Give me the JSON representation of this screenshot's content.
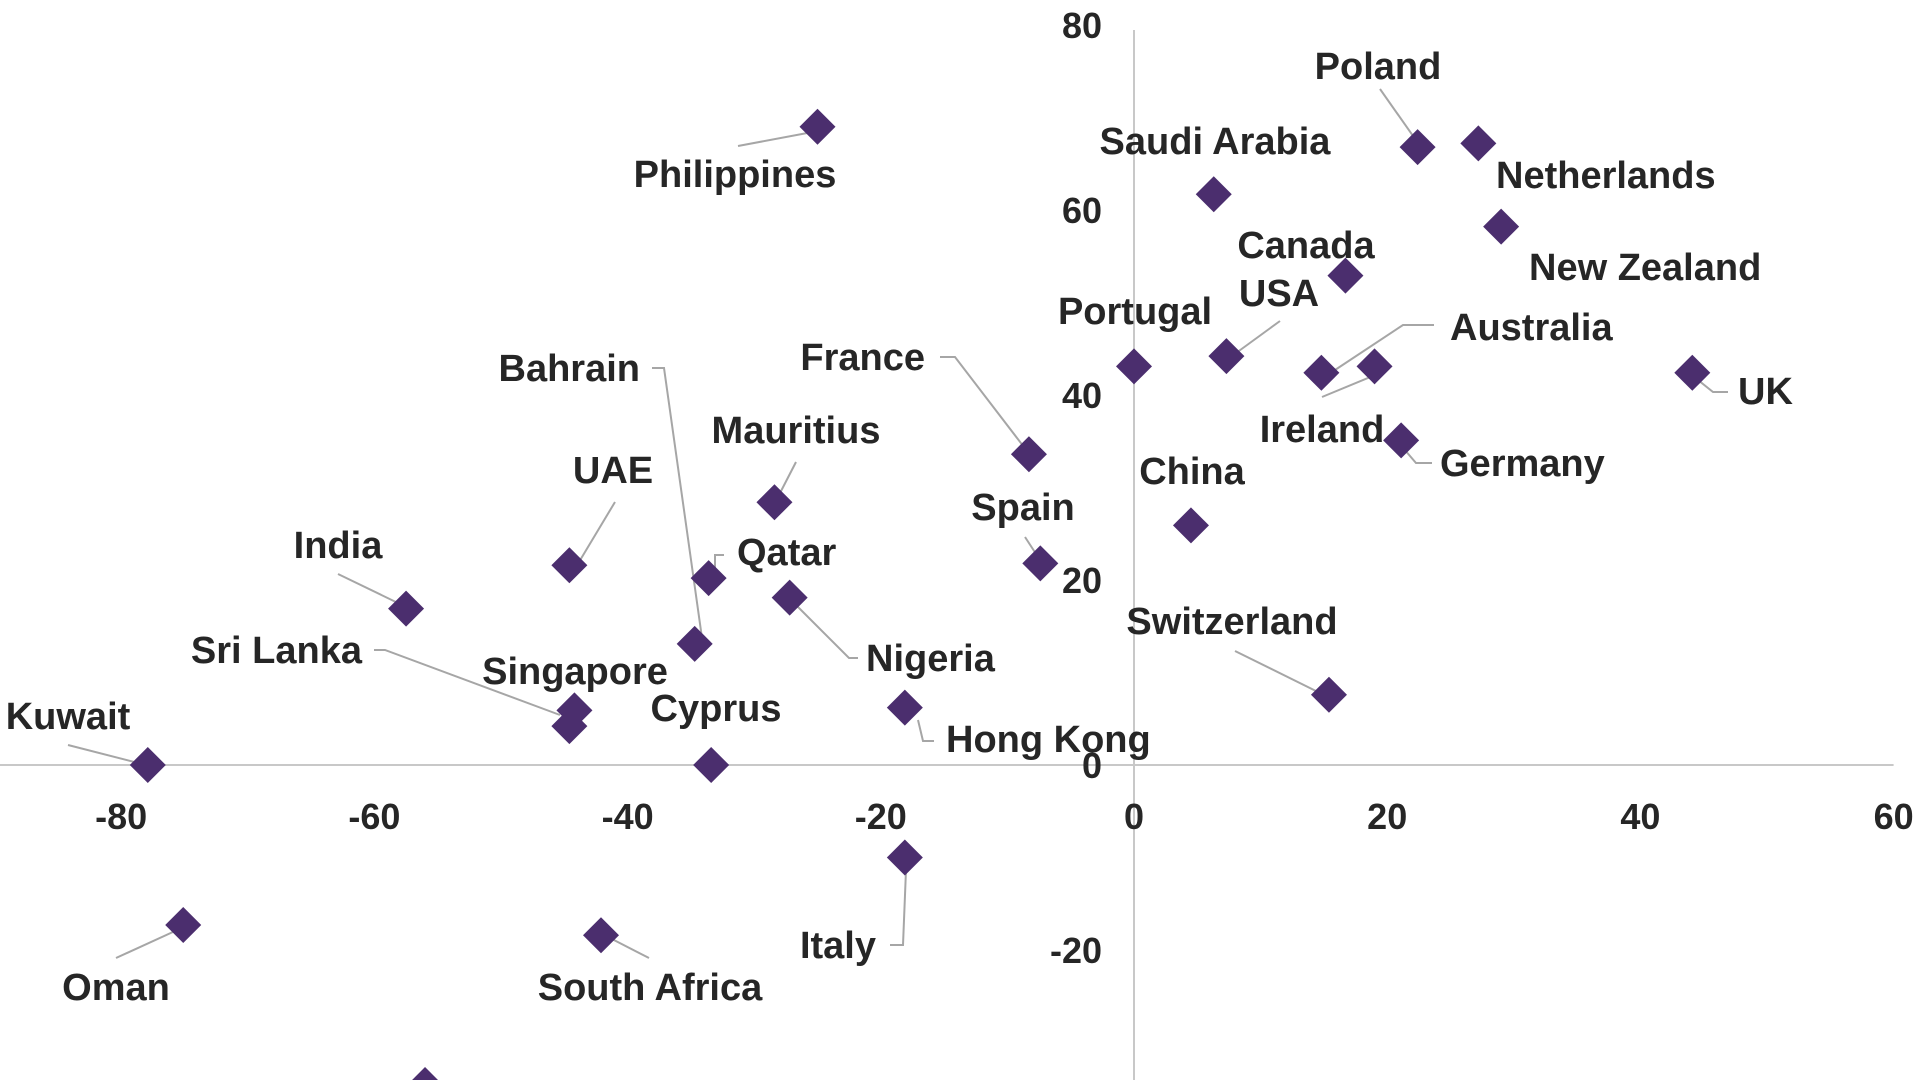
{
  "chart_data": {
    "type": "scatter",
    "title": "",
    "xlabel": "",
    "ylabel": "",
    "xlim": [
      -90,
      60
    ],
    "ylim": [
      -36,
      80
    ],
    "grid": false,
    "xticks": [
      -80,
      -60,
      -40,
      -20,
      0,
      20,
      40,
      60
    ],
    "yticks": [
      -20,
      0,
      20,
      40,
      60,
      80
    ],
    "marker_color": "#4b2e6e",
    "points": [
      {
        "label": "Philippines",
        "x": -25,
        "y": 69
      },
      {
        "label": "Saudi Arabia",
        "x": 6.3,
        "y": 61.7
      },
      {
        "label": "Poland",
        "x": 22.4,
        "y": 66.8
      },
      {
        "label": "Netherlands",
        "x": 27.2,
        "y": 67.2
      },
      {
        "label": "New Zealand",
        "x": 29,
        "y": 58.2
      },
      {
        "label": "Canada",
        "x": 16.7,
        "y": 52.9
      },
      {
        "label": "Portugal",
        "x": 0,
        "y": 43.1
      },
      {
        "label": "USA",
        "x": 7.3,
        "y": 44.2
      },
      {
        "label": "Australia",
        "x": 19,
        "y": 43.1
      },
      {
        "label": "Ireland",
        "x": 14.8,
        "y": 42.4
      },
      {
        "label": "UK",
        "x": 44.1,
        "y": 42.4
      },
      {
        "label": "Germany",
        "x": 21.1,
        "y": 35.1
      },
      {
        "label": "China",
        "x": 4.5,
        "y": 25.9
      },
      {
        "label": "France",
        "x": -8.3,
        "y": 33.6
      },
      {
        "label": "Spain",
        "x": -7.4,
        "y": 21.8
      },
      {
        "label": "Mauritius",
        "x": -28.4,
        "y": 28.4
      },
      {
        "label": "UAE",
        "x": -44.6,
        "y": 21.6
      },
      {
        "label": "Qatar",
        "x": -33.6,
        "y": 20.2
      },
      {
        "label": "Nigeria",
        "x": -27.2,
        "y": 18.1
      },
      {
        "label": "India",
        "x": -57.5,
        "y": 16.9
      },
      {
        "label": "Bahrain",
        "x": -34.7,
        "y": 13.1
      },
      {
        "label": "Switzerland",
        "x": 15.4,
        "y": 7.6
      },
      {
        "label": "Singapore",
        "x": -44.2,
        "y": 5.9
      },
      {
        "label": "Sri Lanka",
        "x": -44.6,
        "y": 4.2
      },
      {
        "label": "Hong Kong",
        "x": -18.1,
        "y": 6.2
      },
      {
        "label": "Kuwait",
        "x": -77.9,
        "y": 0
      },
      {
        "label": "Cyprus",
        "x": -33.4,
        "y": 0
      },
      {
        "label": "Italy",
        "x": -18.1,
        "y": -10
      },
      {
        "label": "Oman",
        "x": -75.1,
        "y": -17.3
      },
      {
        "label": "South Africa",
        "x": -42.1,
        "y": -18.4
      },
      {
        "label": "",
        "x": -56,
        "y": -34.6
      }
    ]
  }
}
